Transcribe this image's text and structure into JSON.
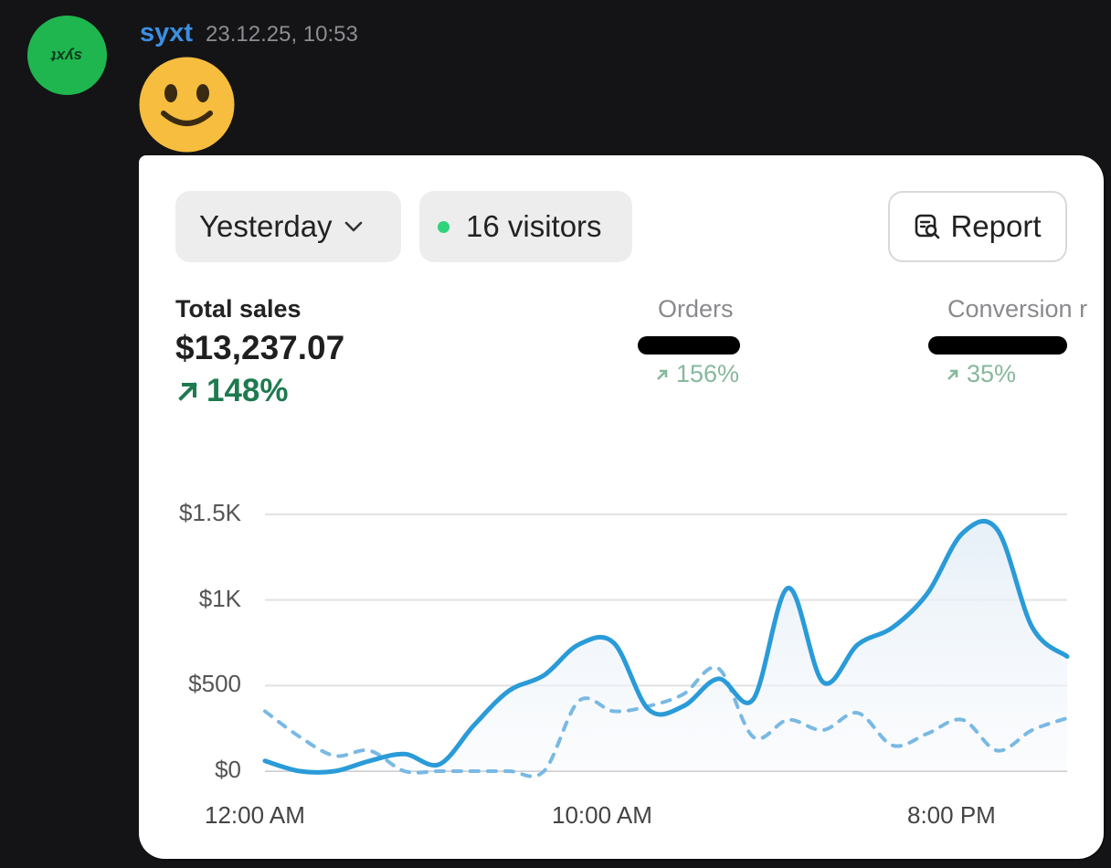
{
  "message": {
    "avatar_text": "syxt",
    "username": "syxt",
    "timestamp": "23.12.25, 10:53",
    "emoji_icon": "smiley-face-icon"
  },
  "card": {
    "period_label": "Yesterday",
    "visitors_label": "16 visitors",
    "report_label": "Report",
    "metrics": {
      "total_sales": {
        "label": "Total sales",
        "value": "$13,237.07",
        "change": "148%"
      },
      "orders": {
        "label": "Orders",
        "change": "156%"
      },
      "conversion": {
        "label": "Conversion r",
        "change": "35%"
      }
    }
  },
  "colors": {
    "accent": "#2a9bd8",
    "positive": "#1e7a4f",
    "username": "#3b8fe0",
    "avatar": "#1fb64f"
  },
  "chart_data": {
    "type": "line",
    "ytick_labels": [
      "$0",
      "$500",
      "$1K",
      "$1.5K"
    ],
    "ytick_values": [
      0,
      500,
      1000,
      1500
    ],
    "xtick_labels": [
      "12:00 AM",
      "10:00 AM",
      "8:00 PM"
    ],
    "ylim": [
      0,
      1500
    ],
    "grid": true,
    "series": [
      {
        "style": "solid",
        "x": [
          0,
          1,
          2,
          3,
          4,
          5,
          6,
          7,
          8,
          9,
          10,
          11,
          12,
          13,
          14,
          15,
          16,
          17,
          18,
          19,
          20,
          21,
          22,
          23
        ],
        "values": [
          60,
          0,
          0,
          60,
          100,
          40,
          270,
          470,
          560,
          740,
          750,
          360,
          380,
          540,
          420,
          1070,
          520,
          740,
          840,
          1040,
          1390,
          1410,
          840,
          670
        ]
      },
      {
        "style": "dashed",
        "x": [
          0,
          1,
          2,
          3,
          4,
          5,
          6,
          7,
          8,
          9,
          10,
          11,
          12,
          13,
          14,
          15,
          16,
          17,
          18,
          19,
          20,
          21,
          22,
          23
        ],
        "values": [
          350,
          200,
          90,
          120,
          0,
          0,
          0,
          0,
          0,
          410,
          350,
          380,
          450,
          600,
          200,
          300,
          240,
          340,
          150,
          220,
          300,
          120,
          240,
          310
        ]
      }
    ]
  }
}
